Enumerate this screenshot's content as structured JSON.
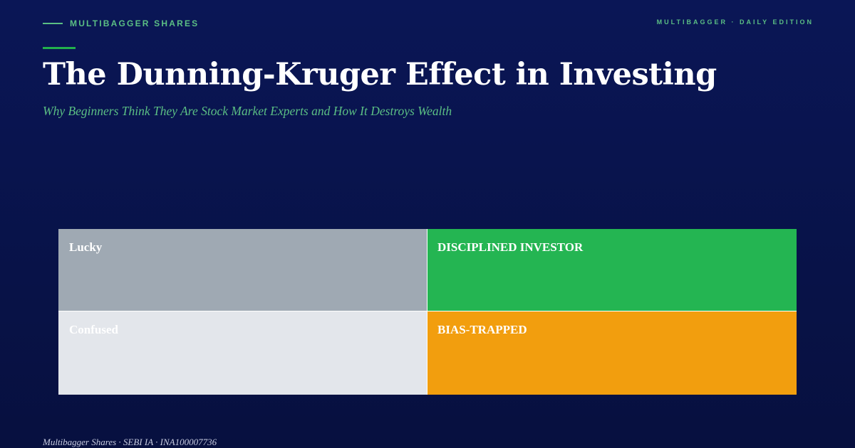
{
  "header": {
    "brand": "MULTIBAGGER SHARES",
    "edition": "MULTIBAGGER · DAILY EDITION"
  },
  "title": "The Dunning-Kruger Effect in Investing",
  "subtitle": "Why Beginners Think They Are Stock Market Experts and How It Destroys Wealth",
  "matrix": {
    "cells": [
      {
        "label": "Lucky",
        "color": "#9fa9b3"
      },
      {
        "label": "DISCIPLINED INVESTOR",
        "color": "#24b552"
      },
      {
        "label": "Confused",
        "color": "#e3e6eb"
      },
      {
        "label": "BIAS-TRAPPED",
        "color": "#f29e0e"
      }
    ]
  },
  "footer": "Multibagger Shares · SEBI IA · INA100007736",
  "colors": {
    "background": "#0a1656",
    "accent_green": "#22b14c",
    "brand_text": "#5bbf84"
  }
}
